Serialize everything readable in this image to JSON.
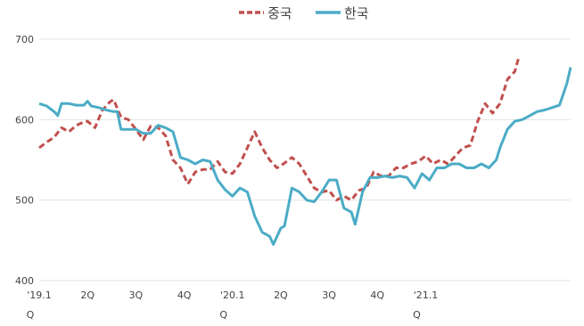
{
  "chart_data": {
    "type": "line",
    "title": "",
    "xlabel": "",
    "ylabel": "",
    "ylim": [
      400,
      700
    ],
    "yticks": [
      400,
      500,
      600,
      700
    ],
    "grid": true,
    "legend_position": "top-center",
    "x_tick_labels": [
      {
        "x": 0,
        "line1": "'19.1",
        "line2": "Q"
      },
      {
        "x": 13,
        "line1": "2Q",
        "line2": ""
      },
      {
        "x": 26,
        "line1": "3Q",
        "line2": ""
      },
      {
        "x": 39,
        "line1": "4Q",
        "line2": ""
      },
      {
        "x": 52,
        "line1": "'20.1",
        "line2": "Q"
      },
      {
        "x": 65,
        "line1": "2Q",
        "line2": ""
      },
      {
        "x": 78,
        "line1": "3Q",
        "line2": ""
      },
      {
        "x": 91,
        "line1": "4Q",
        "line2": ""
      },
      {
        "x": 104,
        "line1": "'21.1",
        "line2": "Q"
      }
    ],
    "series": [
      {
        "name": "중국",
        "color": "#c0504d",
        "style": "dashed",
        "values": [
          [
            0,
            565
          ],
          [
            2,
            572
          ],
          [
            4,
            578
          ],
          [
            6,
            590
          ],
          [
            8,
            585
          ],
          [
            10,
            593
          ],
          [
            12,
            597
          ],
          [
            13,
            598
          ],
          [
            15,
            590
          ],
          [
            17,
            612
          ],
          [
            19,
            622
          ],
          [
            20,
            625
          ],
          [
            22,
            603
          ],
          [
            24,
            600
          ],
          [
            26,
            588
          ],
          [
            28,
            575
          ],
          [
            30,
            592
          ],
          [
            32,
            590
          ],
          [
            34,
            580
          ],
          [
            36,
            550
          ],
          [
            38,
            540
          ],
          [
            40,
            520
          ],
          [
            42,
            535
          ],
          [
            44,
            538
          ],
          [
            46,
            538
          ],
          [
            48,
            548
          ],
          [
            50,
            535
          ],
          [
            52,
            533
          ],
          [
            54,
            545
          ],
          [
            56,
            565
          ],
          [
            58,
            585
          ],
          [
            60,
            565
          ],
          [
            62,
            550
          ],
          [
            64,
            540
          ],
          [
            66,
            546
          ],
          [
            68,
            553
          ],
          [
            70,
            545
          ],
          [
            72,
            530
          ],
          [
            74,
            515
          ],
          [
            76,
            510
          ],
          [
            78,
            512
          ],
          [
            80,
            500
          ],
          [
            82,
            505
          ],
          [
            84,
            500
          ],
          [
            86,
            512
          ],
          [
            88,
            515
          ],
          [
            90,
            535
          ],
          [
            92,
            530
          ],
          [
            94,
            530
          ],
          [
            96,
            540
          ],
          [
            98,
            540
          ],
          [
            100,
            545
          ],
          [
            102,
            548
          ],
          [
            104,
            555
          ],
          [
            106,
            545
          ],
          [
            108,
            550
          ],
          [
            110,
            545
          ],
          [
            112,
            555
          ],
          [
            114,
            565
          ],
          [
            116,
            568
          ],
          [
            118,
            598
          ],
          [
            120,
            620
          ],
          [
            122,
            608
          ],
          [
            124,
            620
          ],
          [
            126,
            650
          ],
          [
            128,
            660
          ],
          [
            129,
            677
          ]
        ]
      },
      {
        "name": "한국",
        "color": "#4bacc6",
        "style": "solid",
        "values": [
          [
            0,
            620
          ],
          [
            2,
            617
          ],
          [
            4,
            610
          ],
          [
            5,
            605
          ],
          [
            6,
            620
          ],
          [
            8,
            620
          ],
          [
            10,
            618
          ],
          [
            11,
            618
          ],
          [
            12,
            618
          ],
          [
            13,
            623
          ],
          [
            14,
            617
          ],
          [
            16,
            615
          ],
          [
            18,
            612
          ],
          [
            20,
            610
          ],
          [
            21,
            610
          ],
          [
            22,
            588
          ],
          [
            24,
            588
          ],
          [
            26,
            588
          ],
          [
            28,
            583
          ],
          [
            30,
            583
          ],
          [
            32,
            593
          ],
          [
            34,
            590
          ],
          [
            36,
            585
          ],
          [
            38,
            553
          ],
          [
            40,
            550
          ],
          [
            42,
            545
          ],
          [
            44,
            550
          ],
          [
            46,
            548
          ],
          [
            48,
            525
          ],
          [
            50,
            513
          ],
          [
            52,
            505
          ],
          [
            54,
            515
          ],
          [
            56,
            510
          ],
          [
            58,
            480
          ],
          [
            60,
            460
          ],
          [
            62,
            455
          ],
          [
            63,
            445
          ],
          [
            65,
            465
          ],
          [
            66,
            468
          ],
          [
            68,
            515
          ],
          [
            70,
            510
          ],
          [
            72,
            500
          ],
          [
            74,
            498
          ],
          [
            76,
            510
          ],
          [
            78,
            525
          ],
          [
            80,
            525
          ],
          [
            82,
            490
          ],
          [
            84,
            485
          ],
          [
            85,
            470
          ],
          [
            87,
            510
          ],
          [
            89,
            528
          ],
          [
            91,
            528
          ],
          [
            93,
            530
          ],
          [
            95,
            528
          ],
          [
            97,
            530
          ],
          [
            99,
            528
          ],
          [
            101,
            515
          ],
          [
            103,
            533
          ],
          [
            105,
            525
          ],
          [
            107,
            540
          ],
          [
            109,
            540
          ],
          [
            111,
            545
          ],
          [
            113,
            545
          ],
          [
            115,
            540
          ],
          [
            117,
            540
          ],
          [
            119,
            545
          ],
          [
            121,
            540
          ],
          [
            123,
            550
          ],
          [
            124,
            565
          ],
          [
            126,
            588
          ],
          [
            128,
            598
          ],
          [
            130,
            600
          ],
          [
            132,
            605
          ],
          [
            134,
            610
          ],
          [
            136,
            612
          ],
          [
            138,
            615
          ],
          [
            140,
            618
          ],
          [
            142,
            645
          ],
          [
            143,
            665
          ]
        ]
      }
    ]
  }
}
